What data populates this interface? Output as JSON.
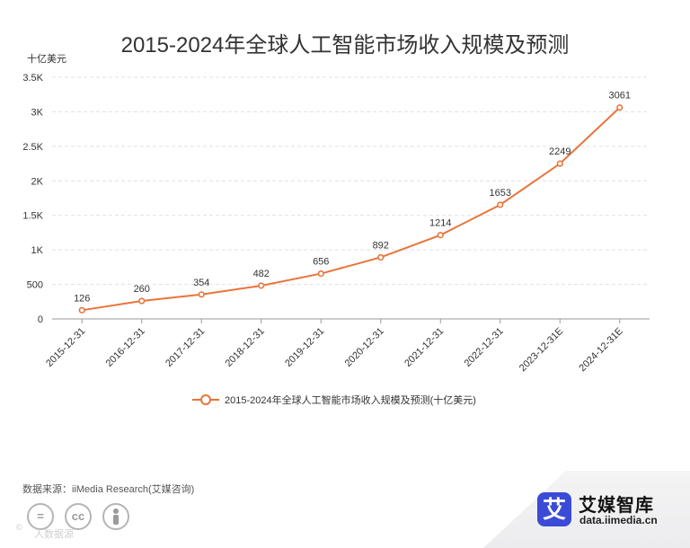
{
  "title": "2015-2024年全球人工智能市场收入规模及预测",
  "unit_label": "十亿美元",
  "legend_label": "2015-2024年全球人工智能市场收入规模及预测(十亿美元)",
  "source": "数据来源：iiMedia Research(艾媒咨询)",
  "brand": {
    "name": "艾媒智库",
    "url": "data.iimedia.cn",
    "logo_char": "艾"
  },
  "license": {
    "icons": [
      "=",
      "cc",
      "person"
    ],
    "caption": "人数据源"
  },
  "colors": {
    "line": "#e8743b",
    "grid": "#e0e0e0",
    "axis": "#999999",
    "brand": "#3b4bd8"
  },
  "chart_data": {
    "type": "line",
    "title": "2015-2024年全球人工智能市场收入规模及预测",
    "ylabel": "十亿美元",
    "xlabel": "",
    "categories": [
      "2015-12-31",
      "2016-12-31",
      "2017-12-31",
      "2018-12-31",
      "2019-12-31",
      "2020-12-31",
      "2021-12-31",
      "2022-12-31",
      "2023-12-31E",
      "2024-12-31E"
    ],
    "series": [
      {
        "name": "2015-2024年全球人工智能市场收入规模及预测(十亿美元)",
        "values": [
          126,
          260,
          354,
          482,
          656,
          892,
          1214,
          1653,
          2249,
          3061
        ]
      }
    ],
    "ylim": [
      0,
      3500
    ],
    "yticks": [
      0,
      500,
      1000,
      1500,
      2000,
      2500,
      3000,
      3500
    ],
    "ytick_labels": [
      "0",
      "500",
      "1K",
      "1.5K",
      "2K",
      "2.5K",
      "3K",
      "3.5K"
    ],
    "grid": true,
    "data_labels": true,
    "legend_position": "bottom"
  }
}
